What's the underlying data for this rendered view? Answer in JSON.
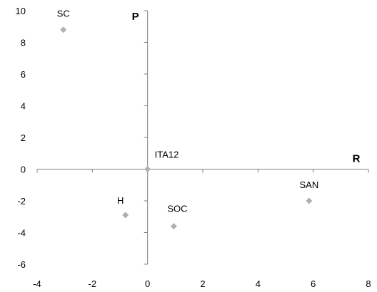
{
  "chart_data": {
    "type": "scatter",
    "title": "",
    "xlabel": "R",
    "ylabel": "P",
    "xlim": [
      -4,
      8
    ],
    "ylim": [
      -6,
      10
    ],
    "x_ticks": [
      "-4",
      "-2",
      "0",
      "2",
      "4",
      "6",
      "8"
    ],
    "y_ticks": [
      "10",
      "8",
      "6",
      "4",
      "2",
      "0",
      "-2",
      "-4",
      "-6"
    ],
    "grid": false,
    "legend": "none",
    "marker": "diamond",
    "marker_color": "#b0b0b0",
    "points": [
      {
        "label": "SC",
        "x": -3.05,
        "y": 8.8
      },
      {
        "label": "ITA12",
        "x": 0,
        "y": 0
      },
      {
        "label": "SAN",
        "x": 5.85,
        "y": -2.0
      },
      {
        "label": "H",
        "x": -0.8,
        "y": -2.9
      },
      {
        "label": "SOC",
        "x": 0.95,
        "y": -3.6
      }
    ]
  }
}
